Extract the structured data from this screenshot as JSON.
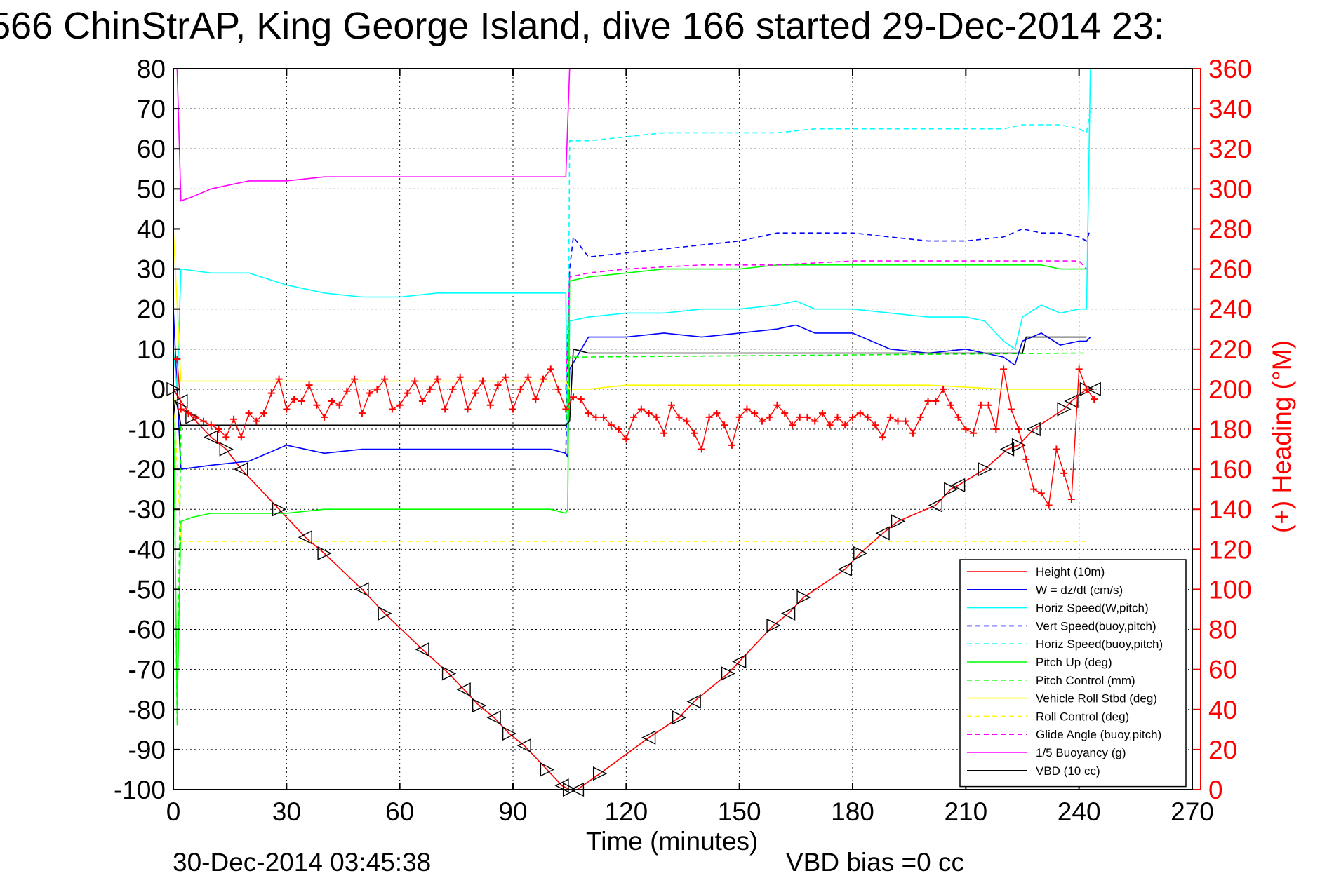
{
  "chart_data": {
    "type": "line",
    "title": "566 ChinStrAP, King George Island, dive 166 started 29-Dec-2014 23:",
    "xlabel": "Time (minutes)",
    "ylabel_right": "(+) Heading (°M)",
    "x_ticks": [
      "0",
      "30",
      "60",
      "90",
      "120",
      "150",
      "180",
      "210",
      "240",
      "270"
    ],
    "y_ticks": [
      "80",
      "70",
      "60",
      "50",
      "40",
      "30",
      "20",
      "10",
      "0",
      "-10",
      "-20",
      "-30",
      "-40",
      "-50",
      "-60",
      "-70",
      "-80",
      "-90",
      "-100"
    ],
    "y2_ticks": [
      "360",
      "340",
      "320",
      "300",
      "280",
      "260",
      "240",
      "220",
      "200",
      "180",
      "160",
      "140",
      "120",
      "100",
      "80",
      "60",
      "40",
      "20",
      "0"
    ],
    "xlim": [
      0,
      270
    ],
    "ylim": [
      -100,
      80
    ],
    "y2lim": [
      0,
      360
    ],
    "grid": true,
    "legend_position": "lower-right",
    "footer_left": "30-Dec-2014 03:45:38",
    "footer_center": "VBD bias =0 cc",
    "colors": {
      "red": "#ff0000",
      "blue": "#0000ff",
      "cyan": "#00ffff",
      "green": "#00ff00",
      "yellow": "#ffff00",
      "magenta": "#ff00ff",
      "black": "#000000"
    },
    "series": [
      {
        "name": "Height (10m)",
        "color": "#ff0000",
        "style": "solid",
        "x": [
          0,
          2,
          5,
          10,
          14,
          18,
          28,
          35,
          40,
          50,
          56,
          66,
          73,
          77,
          81,
          85,
          89,
          93,
          99,
          103,
          105,
          107,
          113,
          126,
          134,
          138,
          147,
          150,
          159,
          163,
          167,
          178,
          182,
          188,
          192,
          202,
          206,
          208,
          215,
          221,
          224,
          228,
          236,
          238,
          242,
          244
        ],
        "y": [
          0,
          -3,
          -7,
          -12,
          -15,
          -20,
          -30,
          -37,
          -41,
          -50,
          -56,
          -65,
          -71,
          -75,
          -79,
          -82,
          -86,
          -89,
          -95,
          -99,
          -100,
          -100,
          -96,
          -87,
          -82,
          -78,
          -71,
          -68,
          -59,
          -56,
          -52,
          -45,
          -41,
          -36,
          -33,
          -29,
          -25,
          -24,
          -20,
          -15,
          -14,
          -10,
          -5,
          -3,
          0,
          0
        ]
      },
      {
        "name": "W = dz/dt (cm/s)",
        "color": "#0000ff",
        "style": "solid",
        "x": [
          0,
          1,
          2,
          10,
          20,
          30,
          40,
          50,
          60,
          70,
          80,
          90,
          100,
          104,
          104.5,
          105,
          110,
          120,
          130,
          140,
          150,
          160,
          165,
          170,
          180,
          190,
          200,
          210,
          215,
          220,
          223,
          225,
          230,
          235,
          240,
          242,
          243
        ],
        "y": [
          20,
          0,
          -20,
          -19,
          -18,
          -14,
          -16,
          -15,
          -15,
          -15,
          -15,
          -15,
          -15,
          -16,
          -17,
          5,
          13,
          13,
          14,
          13,
          14,
          15,
          16,
          14,
          14,
          10,
          9,
          10,
          9,
          8,
          6,
          12,
          14,
          11,
          12,
          12,
          13
        ]
      },
      {
        "name": "Horiz Speed(W,pitch)",
        "color": "#00ffff",
        "style": "solid",
        "x": [
          0,
          1,
          2,
          10,
          20,
          30,
          40,
          50,
          60,
          70,
          80,
          90,
          100,
          104,
          104.5,
          105,
          110,
          120,
          130,
          140,
          150,
          160,
          165,
          170,
          180,
          190,
          200,
          210,
          215,
          220,
          223,
          225,
          230,
          235,
          240,
          242,
          243
        ],
        "y": [
          10,
          0,
          30,
          29,
          29,
          26,
          24,
          23,
          23,
          24,
          24,
          24,
          24,
          24,
          -16,
          17,
          18,
          19,
          19,
          20,
          20,
          21,
          22,
          20,
          20,
          19,
          18,
          18,
          17,
          12,
          10,
          18,
          21,
          19,
          20,
          20,
          80
        ]
      },
      {
        "name": "Vert Speed(buoy,pitch)",
        "color": "#0000ff",
        "style": "dashed",
        "x": [
          104,
          105,
          106,
          110,
          120,
          130,
          140,
          150,
          160,
          170,
          180,
          190,
          200,
          210,
          220,
          225,
          230,
          235,
          240,
          242,
          243
        ],
        "y": [
          -16,
          30,
          38,
          33,
          34,
          35,
          36,
          37,
          39,
          39,
          39,
          38,
          37,
          37,
          38,
          40,
          39,
          39,
          38,
          37,
          40
        ]
      },
      {
        "name": "Horiz Speed(buoy,pitch)",
        "color": "#00ffff",
        "style": "dashed",
        "x": [
          104,
          104.5,
          105,
          110,
          120,
          130,
          140,
          150,
          160,
          170,
          180,
          190,
          200,
          210,
          220,
          225,
          230,
          235,
          240,
          242,
          243
        ],
        "y": [
          24,
          -14,
          62,
          62,
          63,
          64,
          64,
          64,
          64,
          65,
          65,
          65,
          65,
          65,
          65,
          66,
          66,
          66,
          65,
          64,
          70
        ]
      },
      {
        "name": "Pitch Up (deg)",
        "color": "#00ff00",
        "style": "solid",
        "x": [
          0,
          1,
          2,
          5,
          10,
          20,
          30,
          40,
          50,
          60,
          70,
          80,
          90,
          100,
          104,
          104.5,
          105,
          110,
          120,
          130,
          140,
          150,
          160,
          170,
          180,
          190,
          200,
          210,
          220,
          225,
          230,
          235,
          240,
          242
        ],
        "y": [
          0,
          -80,
          -33,
          -32,
          -31,
          -31,
          -31,
          -30,
          -30,
          -30,
          -30,
          -30,
          -30,
          -30,
          -31,
          -30,
          27,
          28,
          29,
          30,
          30,
          30,
          31,
          31,
          31,
          31,
          31,
          31,
          31,
          31,
          31,
          30,
          30,
          30
        ]
      },
      {
        "name": "Pitch Control (mm)",
        "color": "#00ff00",
        "style": "dashed",
        "x": [
          0,
          1,
          2,
          104,
          105,
          106,
          240,
          242
        ],
        "y": [
          0,
          -84,
          -9,
          -9,
          8,
          8,
          9,
          9
        ]
      },
      {
        "name": "Vehicle Roll Stbd (deg)",
        "color": "#ffff00",
        "style": "solid",
        "x": [
          0,
          2,
          10,
          20,
          40,
          60,
          80,
          100,
          104,
          105,
          110,
          120,
          140,
          160,
          180,
          200,
          220,
          240,
          242
        ],
        "y": [
          40,
          2,
          2,
          2,
          2,
          2,
          2,
          2,
          2,
          0,
          0,
          1,
          1,
          1,
          1,
          1,
          0,
          0,
          0
        ]
      },
      {
        "name": "Roll Control (deg)",
        "color": "#ffff00",
        "style": "dashed",
        "x": [
          0,
          2,
          104,
          105,
          242
        ],
        "y": [
          0,
          -38,
          -38,
          -38,
          -38
        ]
      },
      {
        "name": "Glide Angle (buoy,pitch)",
        "color": "#ff00ff",
        "style": "dashed",
        "x": [
          104,
          105,
          110,
          120,
          140,
          160,
          180,
          200,
          220,
          240,
          242
        ],
        "y": [
          0,
          28,
          29,
          30,
          31,
          31,
          32,
          32,
          32,
          32,
          30
        ]
      },
      {
        "name": "1/5 Buoyancy (g)",
        "color": "#ff00ff",
        "style": "solid",
        "x": [
          0,
          1,
          2,
          5,
          10,
          20,
          30,
          40,
          50,
          60,
          70,
          80,
          90,
          100,
          103,
          104,
          105
        ],
        "y": [
          80,
          80,
          47,
          48,
          50,
          52,
          52,
          53,
          53,
          53,
          53,
          53,
          53,
          53,
          53,
          53,
          80
        ]
      },
      {
        "name": "VBD (10 cc)",
        "color": "#000000",
        "style": "solid",
        "x": [
          0,
          0.5,
          1,
          2,
          104,
          105,
          106,
          110,
          225,
          226,
          242
        ],
        "y": [
          -7,
          -3,
          -4,
          -9,
          -9,
          -8,
          10,
          9,
          9,
          13,
          13
        ]
      }
    ],
    "heading_series": {
      "name": "Heading (°M)",
      "color": "#ff0000",
      "axis": "right",
      "marker": "+",
      "x": [
        1,
        2,
        4,
        6,
        8,
        10,
        12,
        14,
        16,
        18,
        20,
        22,
        24,
        26,
        28,
        30,
        32,
        34,
        36,
        38,
        40,
        42,
        44,
        46,
        48,
        50,
        52,
        54,
        56,
        58,
        60,
        62,
        64,
        66,
        68,
        70,
        72,
        74,
        76,
        78,
        80,
        82,
        84,
        86,
        88,
        90,
        92,
        94,
        96,
        98,
        100,
        102,
        104,
        106,
        108,
        110,
        112,
        114,
        116,
        118,
        120,
        122,
        124,
        126,
        128,
        130,
        132,
        134,
        136,
        138,
        140,
        142,
        144,
        146,
        148,
        150,
        152,
        154,
        156,
        158,
        160,
        162,
        164,
        166,
        168,
        170,
        172,
        174,
        176,
        178,
        180,
        182,
        184,
        186,
        188,
        190,
        192,
        194,
        196,
        198,
        200,
        202,
        204,
        206,
        208,
        210,
        212,
        214,
        216,
        218,
        220,
        222,
        224,
        226,
        228,
        230,
        232,
        234,
        236,
        238,
        240,
        242,
        244
      ],
      "y": [
        215,
        190,
        188,
        186,
        184,
        182,
        180,
        176,
        185,
        176,
        188,
        184,
        188,
        198,
        205,
        190,
        195,
        194,
        202,
        192,
        186,
        194,
        192,
        199,
        205,
        188,
        198,
        200,
        205,
        190,
        192,
        198,
        204,
        194,
        200,
        205,
        190,
        200,
        206,
        190,
        198,
        204,
        192,
        202,
        206,
        190,
        200,
        206,
        195,
        205,
        210,
        200,
        190,
        196,
        195,
        188,
        186,
        186,
        182,
        180,
        175,
        186,
        190,
        188,
        186,
        178,
        192,
        186,
        184,
        178,
        170,
        186,
        188,
        182,
        172,
        186,
        190,
        188,
        184,
        186,
        192,
        188,
        182,
        186,
        186,
        184,
        188,
        182,
        186,
        182,
        186,
        188,
        186,
        182,
        176,
        186,
        184,
        184,
        178,
        186,
        194,
        194,
        200,
        192,
        186,
        180,
        178,
        192,
        192,
        180,
        210,
        190,
        180,
        165,
        150,
        148,
        142,
        170,
        158,
        145,
        210,
        200,
        195
      ]
    },
    "chart_annotations": {
      "height_markers": "triangles along Height line"
    }
  }
}
